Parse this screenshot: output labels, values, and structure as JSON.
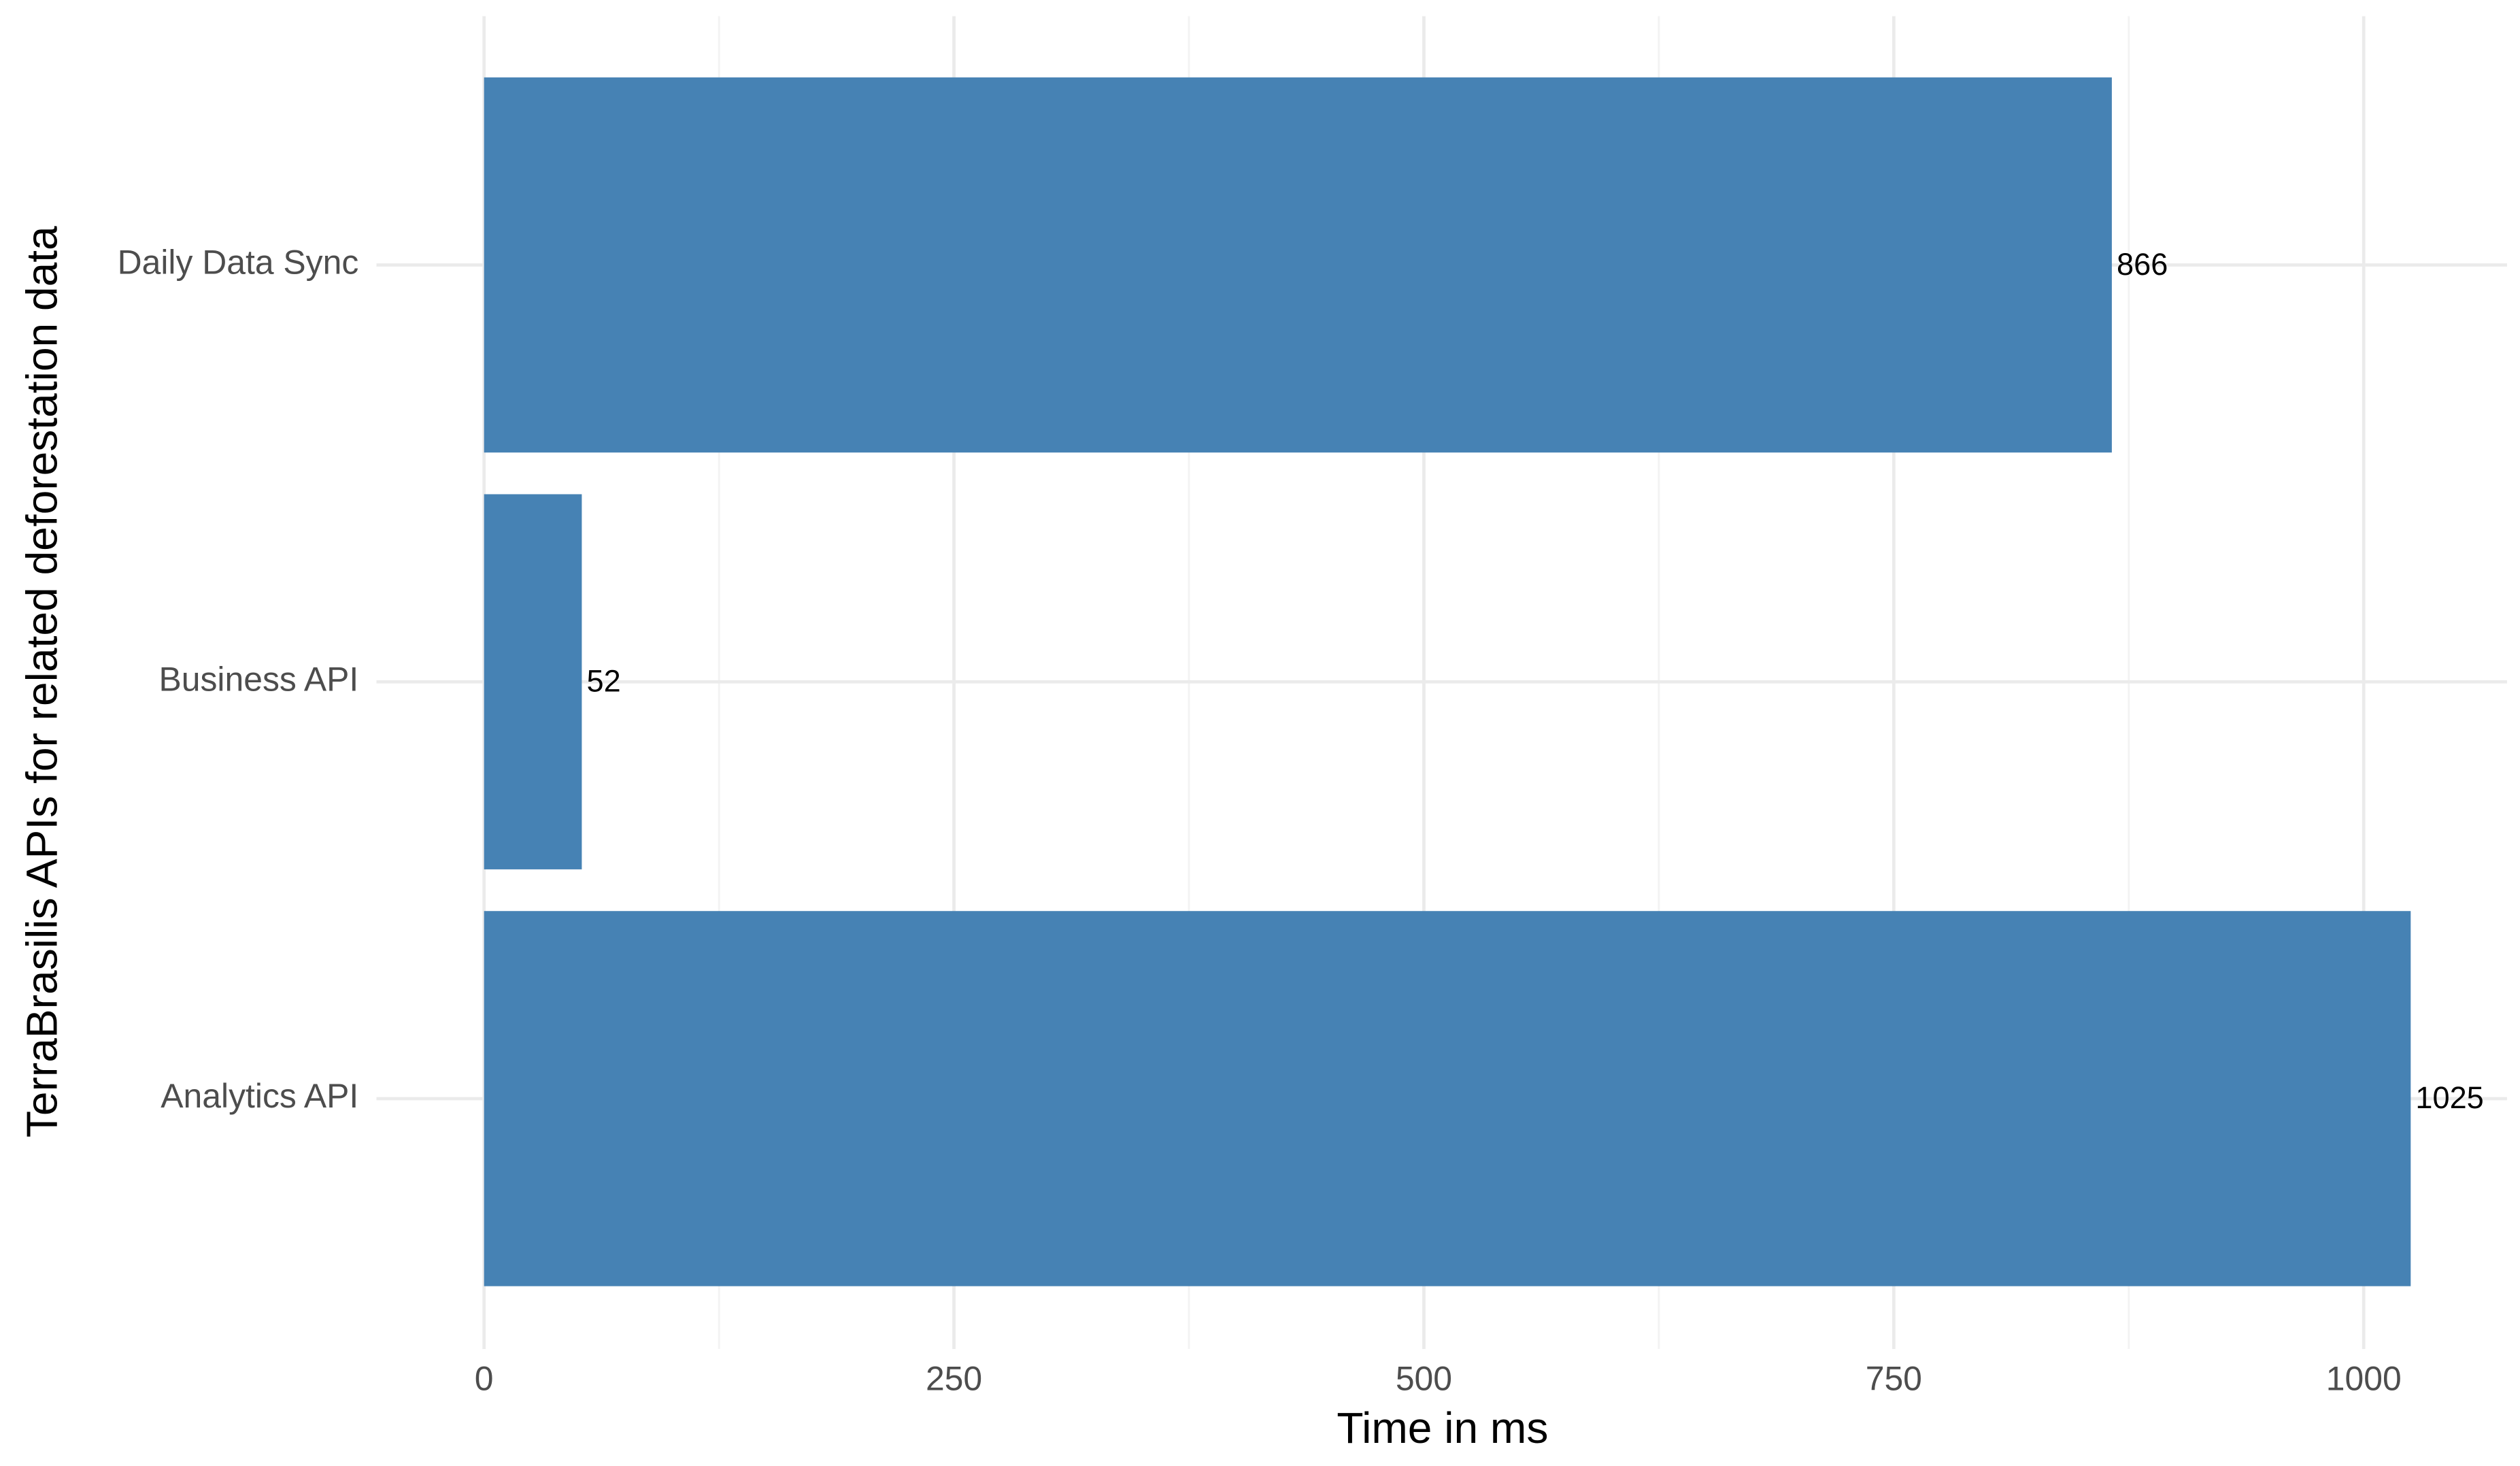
{
  "chart_data": {
    "type": "barh",
    "categories": [
      "Analytics API",
      "Business API",
      "Daily Data Sync"
    ],
    "values": [
      1025,
      52,
      866
    ],
    "color": "#4682b4",
    "xlabel": "Time in ms",
    "ylabel": "TerraBrasilis APIs for related deforestation data",
    "xlim": [
      -51.25,
      1076.25
    ],
    "xticks": [
      0,
      250,
      500,
      750,
      1000
    ],
    "xminor": [
      125,
      375,
      625,
      875
    ],
    "grid": true
  }
}
